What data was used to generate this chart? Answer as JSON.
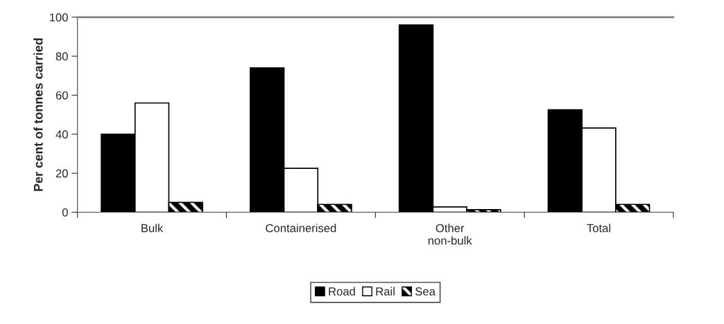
{
  "chart_data": {
    "type": "bar",
    "ylabel": "Per cent of tonnes carried",
    "categories": [
      "Bulk",
      "Containerised",
      "Other\nnon-bulk",
      "Total"
    ],
    "series": [
      {
        "name": "Road",
        "color": "#000000",
        "values": [
          40,
          74,
          96,
          52.5
        ]
      },
      {
        "name": "Rail",
        "color": "#ffffff",
        "values": [
          56,
          22.5,
          2.7,
          43.2
        ]
      },
      {
        "name": "Sea",
        "color": "#000000",
        "values": [
          5,
          4,
          1.3,
          4
        ]
      }
    ],
    "ylim": [
      0,
      100
    ],
    "yticks": [
      0,
      20,
      40,
      60,
      80,
      100
    ],
    "legend": "bottom",
    "grid": false
  }
}
